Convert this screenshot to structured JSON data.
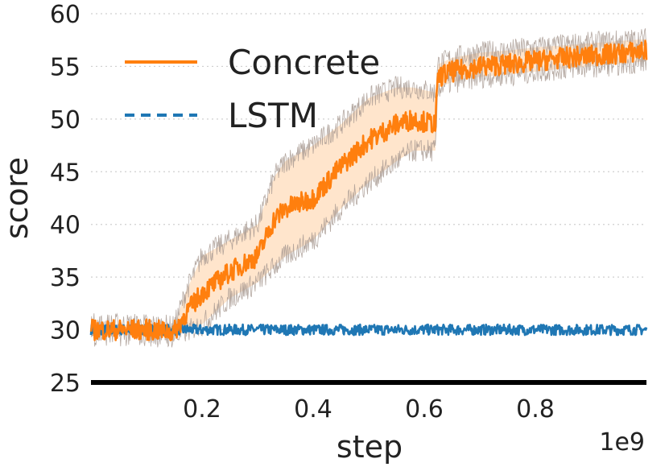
{
  "chart_data": {
    "type": "line",
    "title": "",
    "xlabel": "step",
    "ylabel": "score",
    "x_offset_label": "1e9",
    "xlim": [
      0.0,
      1.0
    ],
    "ylim": [
      25,
      60
    ],
    "xticks": [
      0.2,
      0.4,
      0.6,
      0.8
    ],
    "xtick_labels": [
      "0.2",
      "0.4",
      "0.6",
      "0.8"
    ],
    "yticks": [
      25,
      30,
      35,
      40,
      45,
      50,
      55,
      60
    ],
    "ytick_labels": [
      "25",
      "30",
      "35",
      "40",
      "45",
      "50",
      "55",
      "60"
    ],
    "grid": "horizontal dotted",
    "legend_position": "upper-left",
    "series": [
      {
        "name": "Concrete",
        "color": "#ff7f0e",
        "style": "solid",
        "band_color": "#ffe5cc",
        "band_edge_color": "#a89a92",
        "x": [
          0.0,
          0.05,
          0.1,
          0.15,
          0.17,
          0.2,
          0.25,
          0.3,
          0.33,
          0.35,
          0.4,
          0.45,
          0.5,
          0.55,
          0.58,
          0.62,
          0.625,
          0.65,
          0.7,
          0.75,
          0.8,
          0.85,
          0.9,
          0.95,
          1.0
        ],
        "values": [
          30.0,
          30.0,
          30.0,
          29.8,
          31.5,
          33.5,
          35.5,
          37.0,
          40.5,
          41.5,
          42.5,
          45.5,
          48.0,
          49.5,
          50.0,
          49.5,
          54.0,
          54.5,
          55.0,
          55.2,
          55.5,
          55.8,
          56.0,
          56.2,
          56.5
        ],
        "lower": [
          29.5,
          29.5,
          29.5,
          29.3,
          29.8,
          30.5,
          33.0,
          34.5,
          36.0,
          37.0,
          38.5,
          41.5,
          44.0,
          46.0,
          47.0,
          47.0,
          53.0,
          53.5,
          54.0,
          54.2,
          54.5,
          54.8,
          55.0,
          55.2,
          55.5
        ],
        "upper": [
          30.5,
          30.5,
          30.5,
          30.3,
          33.5,
          37.0,
          38.5,
          40.0,
          44.5,
          46.0,
          47.5,
          49.5,
          52.0,
          53.0,
          53.0,
          52.5,
          55.2,
          55.8,
          56.3,
          56.5,
          56.8,
          57.0,
          57.2,
          57.4,
          57.6
        ],
        "noise_amplitude": 1.0
      },
      {
        "name": "LSTM",
        "color": "#1f77b4",
        "style": "dashed",
        "x": [
          0.0,
          0.1,
          0.2,
          0.3,
          0.4,
          0.5,
          0.6,
          0.7,
          0.8,
          0.9,
          1.0
        ],
        "values": [
          30.0,
          30.0,
          30.0,
          30.0,
          30.0,
          30.0,
          30.0,
          30.0,
          30.0,
          30.0,
          30.0
        ],
        "noise_amplitude": 0.5
      }
    ]
  }
}
